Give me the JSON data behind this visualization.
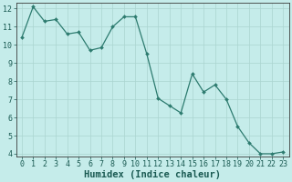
{
  "x": [
    0,
    1,
    2,
    3,
    4,
    5,
    6,
    7,
    8,
    9,
    10,
    11,
    12,
    13,
    14,
    15,
    16,
    17,
    18,
    19,
    20,
    21,
    22,
    23
  ],
  "y": [
    10.4,
    12.1,
    11.3,
    11.4,
    10.6,
    10.7,
    9.7,
    9.85,
    11.0,
    11.55,
    11.55,
    9.5,
    7.05,
    6.65,
    6.25,
    8.4,
    7.4,
    7.8,
    7.0,
    5.5,
    4.6,
    4.0,
    4.0,
    4.1
  ],
  "xlabel": "Humidex (Indice chaleur)",
  "ylim": [
    4,
    12
  ],
  "xlim": [
    -0.5,
    23.5
  ],
  "yticks": [
    4,
    5,
    6,
    7,
    8,
    9,
    10,
    11,
    12
  ],
  "xticks": [
    0,
    1,
    2,
    3,
    4,
    5,
    6,
    7,
    8,
    9,
    10,
    11,
    12,
    13,
    14,
    15,
    16,
    17,
    18,
    19,
    20,
    21,
    22,
    23
  ],
  "line_color": "#2d7b6f",
  "marker_color": "#2d7b6f",
  "bg_color": "#c5ecea",
  "grid_color_major": "#aad4d0",
  "grid_color_minor": "#aad4d0",
  "axis_color": "#3a3a3a",
  "tick_label_fontsize": 6,
  "xlabel_fontsize": 7.5,
  "label_color": "#1a5a52"
}
